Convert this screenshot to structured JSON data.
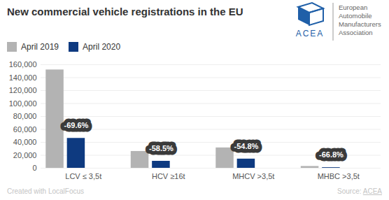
{
  "chart_data": {
    "type": "bar",
    "title": "New commercial vehicle registrations in the EU",
    "categories": [
      "LCV ≤ 3,5t",
      "HCV ≥16t",
      "MHCV >3,5t",
      "MHBC >3,5t"
    ],
    "series": [
      {
        "name": "April 2019",
        "color": "#b3b3b3",
        "values": [
          152000,
          26000,
          31500,
          2800
        ]
      },
      {
        "name": "April 2020",
        "color": "#0e3a80",
        "values": [
          46200,
          10800,
          14200,
          930
        ]
      }
    ],
    "annotations": [
      {
        "category": "LCV ≤ 3,5t",
        "series": "April 2020",
        "text": "-69.6%"
      },
      {
        "category": "HCV ≥16t",
        "series": "April 2020",
        "text": "-58.5%"
      },
      {
        "category": "MHCV >3,5t",
        "series": "April 2020",
        "text": "-54.8%"
      },
      {
        "category": "MHBC >3,5t",
        "series": "April 2020",
        "text": "-66.8%"
      }
    ],
    "ylim": [
      0,
      160000
    ],
    "yticks": [
      0,
      {
        "value": 20000,
        "label": "20,000"
      },
      {
        "value": 40000,
        "label": "40,000"
      },
      {
        "value": 60000,
        "label": "60,000"
      },
      {
        "value": 80000,
        "label": "80,000"
      },
      {
        "value": 100000,
        "label": "100,000"
      },
      {
        "value": 120000,
        "label": "120,000"
      },
      {
        "value": 140000,
        "label": "140,000"
      },
      {
        "value": 160000,
        "label": "160,000"
      }
    ],
    "grid": true,
    "legend": "top-left",
    "logo": {
      "text": "ACEA",
      "name": [
        "European",
        "Automobile",
        "Manufacturers",
        "Association"
      ]
    },
    "credit": "Created with LocalFocus",
    "source": "Source:",
    "source_link": "ACEA"
  }
}
